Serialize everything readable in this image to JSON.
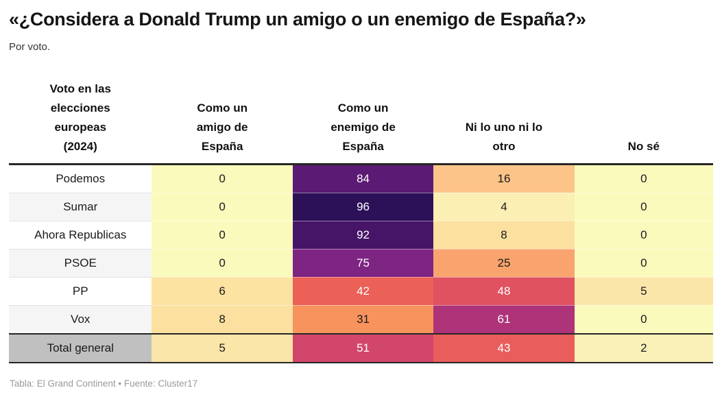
{
  "header": {
    "title": "«¿Considera a Donald Trump un amigo o un enemigo de España?»",
    "subtitle": "Por voto."
  },
  "table": {
    "columns": [
      {
        "label": "Voto en las elecciones europeas (2024)",
        "lines": [
          "Voto en las",
          "elecciones",
          "europeas",
          "(2024)"
        ]
      },
      {
        "label": "Como un amigo de España",
        "lines": [
          "Como un",
          "amigo de",
          "España"
        ]
      },
      {
        "label": "Como un enemigo de España",
        "lines": [
          "Como un",
          "enemigo de",
          "España"
        ]
      },
      {
        "label": "Ni lo uno ni lo otro",
        "lines": [
          "Ni lo uno ni lo",
          "otro"
        ]
      },
      {
        "label": "No sé",
        "lines": [
          "No sé"
        ]
      }
    ],
    "rows": [
      {
        "label": "Podemos",
        "label_bg": "#ffffff",
        "is_total": false,
        "cells": [
          {
            "v": "0",
            "bg": "#fafabd",
            "fg": "#1a1a1a"
          },
          {
            "v": "84",
            "bg": "#5b1a73",
            "fg": "#ffffff"
          },
          {
            "v": "16",
            "bg": "#fcc489",
            "fg": "#1a1a1a"
          },
          {
            "v": "0",
            "bg": "#fafabd",
            "fg": "#1a1a1a"
          }
        ]
      },
      {
        "label": "Sumar",
        "label_bg": "#f5f5f5",
        "is_total": false,
        "cells": [
          {
            "v": "0",
            "bg": "#fafabd",
            "fg": "#1a1a1a"
          },
          {
            "v": "96",
            "bg": "#2c1159",
            "fg": "#ffffff"
          },
          {
            "v": "4",
            "bg": "#fbefb4",
            "fg": "#1a1a1a"
          },
          {
            "v": "0",
            "bg": "#fafabd",
            "fg": "#1a1a1a"
          }
        ]
      },
      {
        "label": "Ahora Republicas",
        "label_bg": "#ffffff",
        "is_total": false,
        "cells": [
          {
            "v": "0",
            "bg": "#fafabd",
            "fg": "#1a1a1a"
          },
          {
            "v": "92",
            "bg": "#461567",
            "fg": "#ffffff"
          },
          {
            "v": "8",
            "bg": "#fbe0a0",
            "fg": "#1a1a1a"
          },
          {
            "v": "0",
            "bg": "#fafabd",
            "fg": "#1a1a1a"
          }
        ]
      },
      {
        "label": "PSOE",
        "label_bg": "#f5f5f5",
        "is_total": false,
        "cells": [
          {
            "v": "0",
            "bg": "#fafabd",
            "fg": "#1a1a1a"
          },
          {
            "v": "75",
            "bg": "#7e2482",
            "fg": "#ffffff"
          },
          {
            "v": "25",
            "bg": "#f9a46e",
            "fg": "#1a1a1a"
          },
          {
            "v": "0",
            "bg": "#fafabd",
            "fg": "#1a1a1a"
          }
        ]
      },
      {
        "label": "PP",
        "label_bg": "#ffffff",
        "is_total": false,
        "cells": [
          {
            "v": "6",
            "bg": "#fce3a2",
            "fg": "#1a1a1a"
          },
          {
            "v": "42",
            "bg": "#eb6057",
            "fg": "#ffffff"
          },
          {
            "v": "48",
            "bg": "#e0525f",
            "fg": "#ffffff"
          },
          {
            "v": "5",
            "bg": "#fbe6a9",
            "fg": "#1a1a1a"
          }
        ]
      },
      {
        "label": "Vox",
        "label_bg": "#f5f5f5",
        "is_total": false,
        "cells": [
          {
            "v": "8",
            "bg": "#fbe0a0",
            "fg": "#1a1a1a"
          },
          {
            "v": "31",
            "bg": "#f8935e",
            "fg": "#1a1a1a"
          },
          {
            "v": "61",
            "bg": "#ae3379",
            "fg": "#ffffff"
          },
          {
            "v": "0",
            "bg": "#fafabd",
            "fg": "#1a1a1a"
          }
        ]
      },
      {
        "label": "Total general",
        "label_bg": "#c0c0c0",
        "is_total": true,
        "cells": [
          {
            "v": "5",
            "bg": "#fbe6a9",
            "fg": "#1a1a1a"
          },
          {
            "v": "51",
            "bg": "#d3466b",
            "fg": "#ffffff"
          },
          {
            "v": "43",
            "bg": "#e95e5c",
            "fg": "#ffffff"
          },
          {
            "v": "2",
            "bg": "#faf1b8",
            "fg": "#1a1a1a"
          }
        ]
      }
    ]
  },
  "footer": {
    "credit": "Tabla: El Grand Continent • Fuente: Cluster17"
  },
  "chart_data": {
    "type": "heatmap",
    "title": "«¿Considera a Donald Trump un amigo o un enemigo de España?»",
    "subtitle": "Por voto.",
    "row_dimension": "Voto en las elecciones europeas (2024)",
    "categories": [
      "Como un amigo de España",
      "Como un enemigo de España",
      "Ni lo uno ni lo otro",
      "No sé"
    ],
    "rows": [
      "Podemos",
      "Sumar",
      "Ahora Republicas",
      "PSOE",
      "PP",
      "Vox",
      "Total general"
    ],
    "values": [
      [
        0,
        84,
        16,
        0
      ],
      [
        0,
        96,
        4,
        0
      ],
      [
        0,
        92,
        8,
        0
      ],
      [
        0,
        75,
        25,
        0
      ],
      [
        6,
        42,
        48,
        5
      ],
      [
        8,
        31,
        61,
        0
      ],
      [
        5,
        51,
        43,
        2
      ]
    ],
    "value_range": [
      0,
      100
    ],
    "color_scale_low": "#fafabd",
    "color_scale_mid": "#e0525f",
    "color_scale_high": "#2c1159",
    "source": "Cluster17",
    "publisher": "El Grand Continent"
  }
}
